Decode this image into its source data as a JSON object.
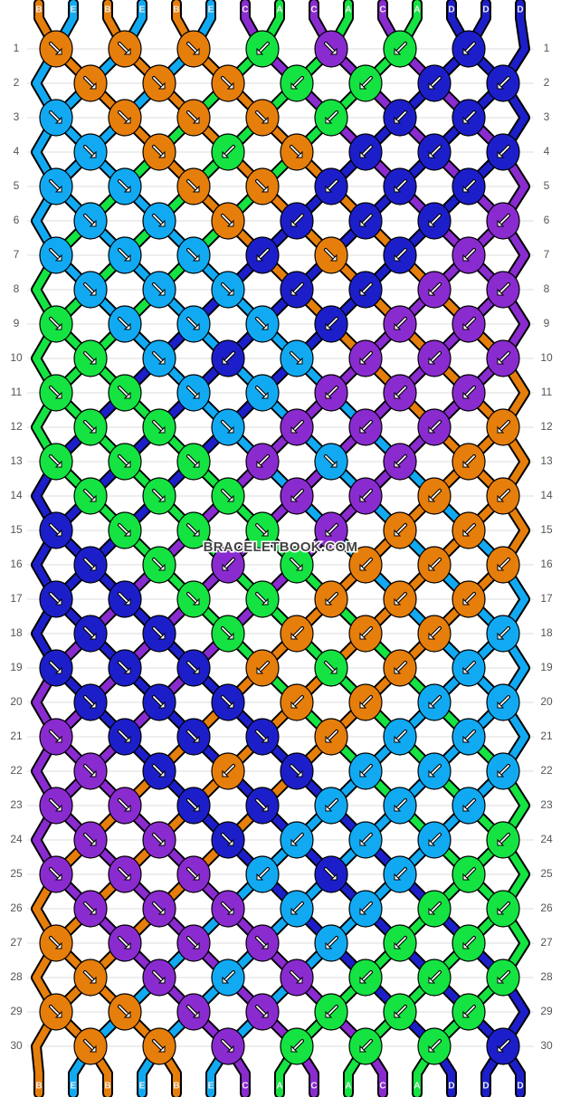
{
  "pattern": {
    "top_labels": [
      "B",
      "E",
      "B",
      "E",
      "B",
      "E",
      "C",
      "A",
      "C",
      "A",
      "C",
      "A",
      "D",
      "D",
      "D"
    ],
    "bottom_labels": [
      "B",
      "E",
      "B",
      "E",
      "B",
      "E",
      "C",
      "A",
      "C",
      "A",
      "C",
      "A",
      "D",
      "D",
      "D"
    ],
    "rows": [
      1,
      2,
      3,
      4,
      5,
      6,
      7,
      8,
      9,
      10,
      11,
      12,
      13,
      14,
      15,
      16,
      17,
      18,
      19,
      20,
      21,
      22,
      23,
      24,
      25,
      26,
      27,
      28,
      29,
      30
    ],
    "watermark": "BRACELETBOOK.COM"
  }
}
